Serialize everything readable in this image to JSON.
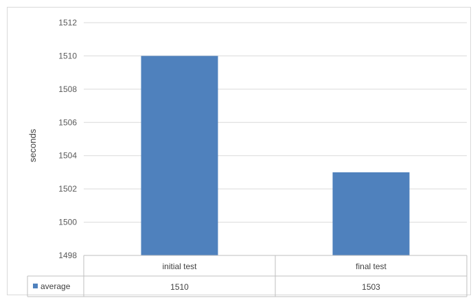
{
  "chart_data": {
    "type": "bar",
    "categories": [
      "initial test",
      "final test"
    ],
    "series": [
      {
        "name": "average",
        "values": [
          1510,
          1503
        ],
        "color": "#4f81bd"
      }
    ],
    "title": "",
    "xlabel": "",
    "ylabel": "seconds",
    "ylim": [
      1498,
      1512
    ],
    "yticks": [
      1498,
      1500,
      1502,
      1504,
      1506,
      1508,
      1510,
      1512
    ],
    "grid": true,
    "data_table": true,
    "legend_position": "data-table-left"
  }
}
